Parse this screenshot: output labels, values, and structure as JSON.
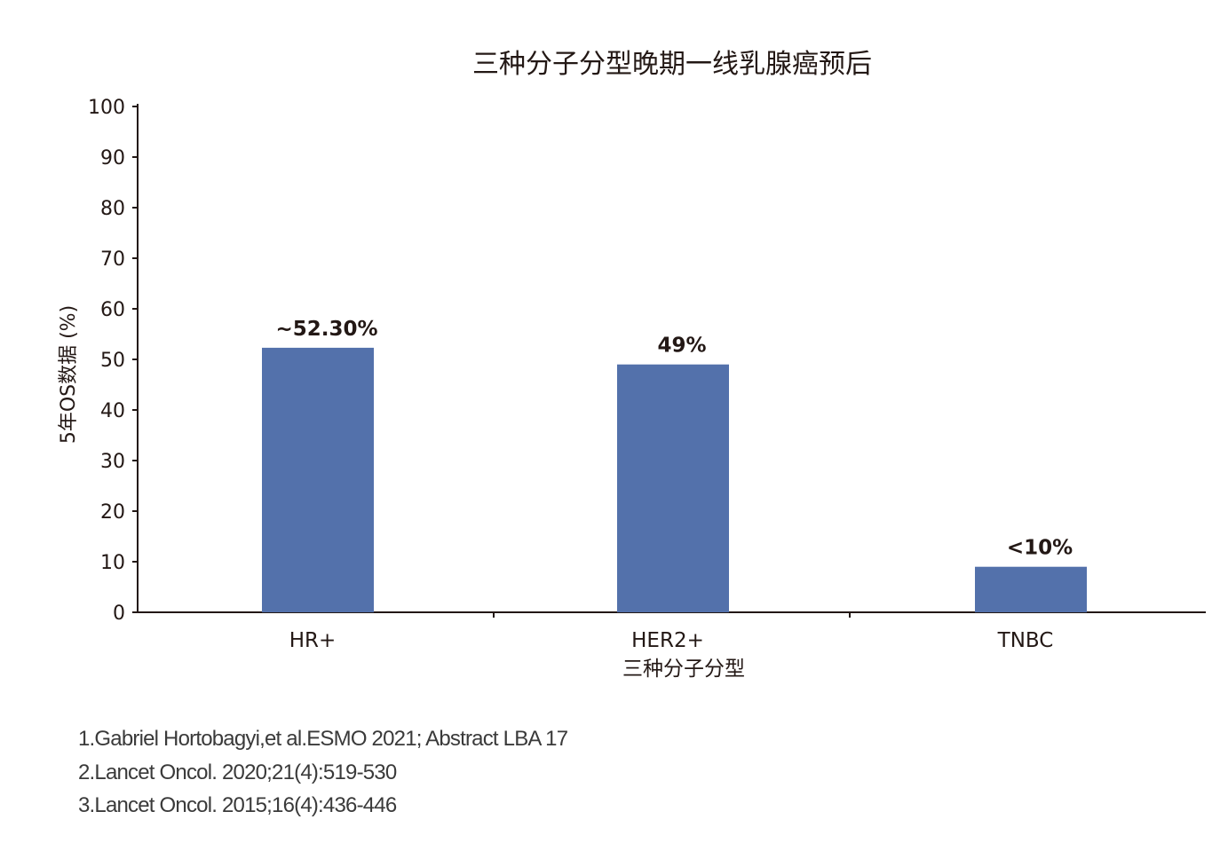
{
  "chart_data": {
    "type": "bar",
    "title": "三种分子分型晚期一线乳腺癌预后",
    "xlabel": "三种分子分型",
    "ylabel": "5年OS数据 (%)",
    "categories": [
      "HR+",
      "HER2+",
      "TNBC"
    ],
    "values": [
      52.3,
      49,
      9
    ],
    "data_labels": [
      "~52.30%",
      "49%",
      "<10%"
    ],
    "ylim": [
      0,
      100
    ],
    "yticks": [
      0,
      10,
      20,
      30,
      40,
      50,
      60,
      70,
      80,
      90,
      100
    ],
    "grid": false,
    "bar_color": "#5371ab"
  },
  "references": [
    "1.Gabriel Hortobagyi,et al.ESMO 2021; Abstract LBA 17",
    "2.Lancet Oncol. 2020;21(4):519-530",
    "3.Lancet Oncol. 2015;16(4):436-446"
  ]
}
